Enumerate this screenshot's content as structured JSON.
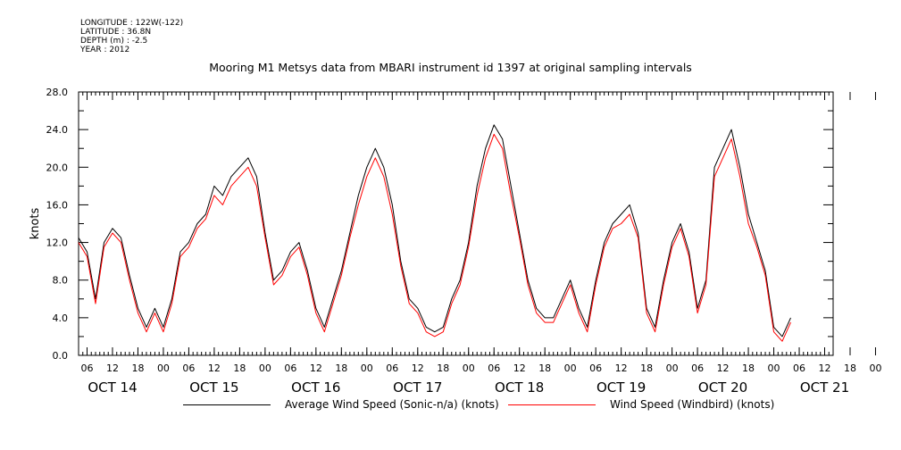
{
  "header": {
    "longitude": "LONGITUDE : 122W(-122)",
    "latitude": "LATITUDE : 36.8N",
    "depth": "DEPTH (m) : -2.5",
    "year": "YEAR : 2012"
  },
  "chart_data": {
    "type": "line",
    "title": "Mooring M1 Metsys data from MBARI instrument id 1397 at original sampling intervals",
    "ylabel": "knots",
    "xlabel": "",
    "ylim": [
      0,
      28
    ],
    "yticks": [
      "0.0",
      "4.0",
      "8.0",
      "12.0",
      "16.0",
      "20.0",
      "24.0",
      "28.0"
    ],
    "xlim_hours": [
      0,
      178
    ],
    "hour_tick_labels": [
      "06",
      "12",
      "18",
      "00",
      "06",
      "12",
      "18",
      "00",
      "06",
      "12",
      "18",
      "00",
      "06",
      "12",
      "18",
      "00",
      "06",
      "12",
      "18",
      "00",
      "06",
      "12",
      "18",
      "00",
      "06",
      "12",
      "18",
      "00",
      "06",
      "12",
      "18",
      "00"
    ],
    "date_labels": [
      "OCT 14",
      "OCT 15",
      "OCT 16",
      "OCT 17",
      "OCT 18",
      "OCT 19",
      "OCT 20",
      "OCT 21"
    ],
    "grid": false,
    "legend_position": "bottom",
    "series": [
      {
        "name": "Average Wind Speed (Sonic-n/a) (knots)",
        "color": "#000000",
        "points": [
          [
            0,
            12.5
          ],
          [
            2,
            11
          ],
          [
            4,
            6
          ],
          [
            6,
            12
          ],
          [
            8,
            13.5
          ],
          [
            10,
            12.5
          ],
          [
            12,
            8.5
          ],
          [
            14,
            5
          ],
          [
            16,
            3
          ],
          [
            18,
            5
          ],
          [
            20,
            3
          ],
          [
            22,
            6
          ],
          [
            24,
            11
          ],
          [
            26,
            12
          ],
          [
            28,
            14
          ],
          [
            30,
            15
          ],
          [
            32,
            18
          ],
          [
            34,
            17
          ],
          [
            36,
            19
          ],
          [
            38,
            20
          ],
          [
            40,
            21
          ],
          [
            42,
            19
          ],
          [
            44,
            13
          ],
          [
            46,
            8
          ],
          [
            48,
            9
          ],
          [
            50,
            11
          ],
          [
            52,
            12
          ],
          [
            54,
            9
          ],
          [
            56,
            5
          ],
          [
            58,
            3
          ],
          [
            60,
            6
          ],
          [
            62,
            9
          ],
          [
            64,
            13
          ],
          [
            66,
            17
          ],
          [
            68,
            20
          ],
          [
            70,
            22
          ],
          [
            72,
            20
          ],
          [
            74,
            16
          ],
          [
            76,
            10
          ],
          [
            78,
            6
          ],
          [
            80,
            5
          ],
          [
            82,
            3
          ],
          [
            84,
            2.5
          ],
          [
            86,
            3
          ],
          [
            88,
            6
          ],
          [
            90,
            8
          ],
          [
            92,
            12
          ],
          [
            94,
            18
          ],
          [
            96,
            22
          ],
          [
            98,
            24.5
          ],
          [
            100,
            23
          ],
          [
            102,
            18
          ],
          [
            104,
            13
          ],
          [
            106,
            8
          ],
          [
            108,
            5
          ],
          [
            110,
            4
          ],
          [
            112,
            4
          ],
          [
            114,
            6
          ],
          [
            116,
            8
          ],
          [
            118,
            5
          ],
          [
            120,
            3
          ],
          [
            122,
            8
          ],
          [
            124,
            12
          ],
          [
            126,
            14
          ],
          [
            128,
            15
          ],
          [
            130,
            16
          ],
          [
            132,
            13
          ],
          [
            134,
            5
          ],
          [
            136,
            3
          ],
          [
            138,
            8
          ],
          [
            140,
            12
          ],
          [
            142,
            14
          ],
          [
            144,
            11
          ],
          [
            146,
            5
          ],
          [
            148,
            8
          ],
          [
            150,
            20
          ],
          [
            152,
            22
          ],
          [
            154,
            24
          ],
          [
            156,
            20
          ],
          [
            158,
            15
          ],
          [
            160,
            12
          ],
          [
            162,
            9
          ],
          [
            164,
            3
          ],
          [
            166,
            2
          ],
          [
            168,
            4
          ]
        ]
      },
      {
        "name": "Wind Speed (Windbird) (knots)",
        "color": "#ff0000",
        "points": [
          [
            0,
            12
          ],
          [
            2,
            10.5
          ],
          [
            4,
            5.5
          ],
          [
            6,
            11.5
          ],
          [
            8,
            13
          ],
          [
            10,
            12
          ],
          [
            12,
            8
          ],
          [
            14,
            4.5
          ],
          [
            16,
            2.5
          ],
          [
            18,
            4.5
          ],
          [
            20,
            2.5
          ],
          [
            22,
            5.5
          ],
          [
            24,
            10.5
          ],
          [
            26,
            11.5
          ],
          [
            28,
            13.5
          ],
          [
            30,
            14.5
          ],
          [
            32,
            17
          ],
          [
            34,
            16
          ],
          [
            36,
            18
          ],
          [
            38,
            19
          ],
          [
            40,
            20
          ],
          [
            42,
            18
          ],
          [
            44,
            12.5
          ],
          [
            46,
            7.5
          ],
          [
            48,
            8.5
          ],
          [
            50,
            10.5
          ],
          [
            52,
            11.5
          ],
          [
            54,
            8.5
          ],
          [
            56,
            4.5
          ],
          [
            58,
            2.5
          ],
          [
            60,
            5.5
          ],
          [
            62,
            8.5
          ],
          [
            64,
            12.5
          ],
          [
            66,
            16
          ],
          [
            68,
            19
          ],
          [
            70,
            21
          ],
          [
            72,
            19
          ],
          [
            74,
            15
          ],
          [
            76,
            9.5
          ],
          [
            78,
            5.5
          ],
          [
            80,
            4.5
          ],
          [
            82,
            2.5
          ],
          [
            84,
            2
          ],
          [
            86,
            2.5
          ],
          [
            88,
            5.5
          ],
          [
            90,
            7.5
          ],
          [
            92,
            11.5
          ],
          [
            94,
            17
          ],
          [
            96,
            21
          ],
          [
            98,
            23.5
          ],
          [
            100,
            22
          ],
          [
            102,
            17
          ],
          [
            104,
            12.5
          ],
          [
            106,
            7.5
          ],
          [
            108,
            4.5
          ],
          [
            110,
            3.5
          ],
          [
            112,
            3.5
          ],
          [
            114,
            5.5
          ],
          [
            116,
            7.5
          ],
          [
            118,
            4.5
          ],
          [
            120,
            2.5
          ],
          [
            122,
            7.5
          ],
          [
            124,
            11.5
          ],
          [
            126,
            13.5
          ],
          [
            128,
            14
          ],
          [
            130,
            15
          ],
          [
            132,
            12.5
          ],
          [
            134,
            4.5
          ],
          [
            136,
            2.5
          ],
          [
            138,
            7.5
          ],
          [
            140,
            11.5
          ],
          [
            142,
            13.5
          ],
          [
            144,
            10.5
          ],
          [
            146,
            4.5
          ],
          [
            148,
            7.5
          ],
          [
            150,
            19
          ],
          [
            152,
            21
          ],
          [
            154,
            23
          ],
          [
            156,
            19
          ],
          [
            158,
            14
          ],
          [
            160,
            11.5
          ],
          [
            162,
            8.5
          ],
          [
            164,
            2.5
          ],
          [
            166,
            1.5
          ],
          [
            168,
            3.5
          ]
        ]
      }
    ]
  }
}
